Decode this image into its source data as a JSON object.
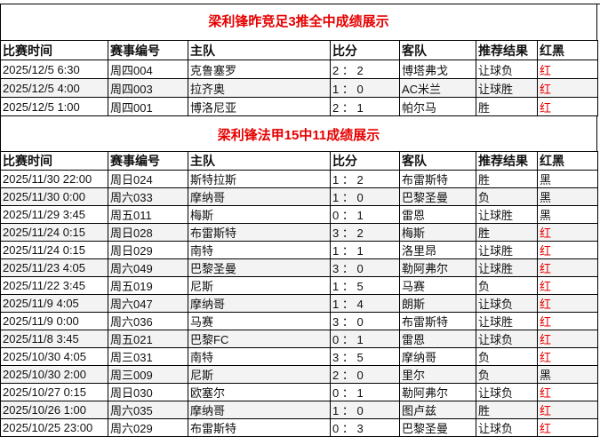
{
  "columns": [
    "比赛时间",
    "赛事编号",
    "主队",
    "比分",
    "客队",
    "推荐结果",
    "红黑"
  ],
  "section1": {
    "title": "梁利锋昨竞足3推全中成绩展示",
    "rows": [
      [
        "2025/12/5 6:30",
        "周四004",
        "克鲁塞罗",
        "2 ： 2",
        "博塔弗戈",
        "让球负",
        "红"
      ],
      [
        "2025/12/5 4:00",
        "周四003",
        "拉齐奥",
        "1 ： 0",
        "AC米兰",
        "让球胜",
        "红"
      ],
      [
        "2025/12/5 1:00",
        "周四001",
        "博洛尼亚",
        "2 ： 1",
        "帕尔马",
        "胜",
        "红"
      ]
    ]
  },
  "section2": {
    "title": "梁利锋法甲15中11成绩展示",
    "rows": [
      [
        "2025/11/30 22:00",
        "周日024",
        "斯特拉斯",
        "1 ： 2",
        "布雷斯特",
        "胜",
        "黑"
      ],
      [
        "2025/11/30 0:00",
        "周六033",
        "摩纳哥",
        "1 ： 0",
        "巴黎圣曼",
        "负",
        "黑"
      ],
      [
        "2025/11/29 3:45",
        "周五011",
        "梅斯",
        "0 ： 1",
        "雷恩",
        "让球胜",
        "黑"
      ],
      [
        "2025/11/24 0:15",
        "周日028",
        "布雷斯特",
        "3 ： 2",
        "梅斯",
        "胜",
        "红"
      ],
      [
        "2025/11/24 0:15",
        "周日029",
        "南特",
        "1 ： 1",
        "洛里昂",
        "让球胜",
        "红"
      ],
      [
        "2025/11/23 4:05",
        "周六049",
        "巴黎圣曼",
        "3 ： 0",
        "勒阿弗尔",
        "让球胜",
        "红"
      ],
      [
        "2025/11/22 3:45",
        "周五019",
        "尼斯",
        "1 ： 5",
        "马赛",
        "负",
        "红"
      ],
      [
        "2025/11/9 4:05",
        "周六047",
        "摩纳哥",
        "1 ： 4",
        "朗斯",
        "让球负",
        "红"
      ],
      [
        "2025/11/9 0:00",
        "周六036",
        "马赛",
        "3 ： 0",
        "布雷斯特",
        "让球胜",
        "红"
      ],
      [
        "2025/11/8 3:45",
        "周五021",
        "巴黎FC",
        "0 ： 1",
        "雷恩",
        "让球负",
        "红"
      ],
      [
        "2025/10/30 4:05",
        "周三031",
        "南特",
        "3 ： 5",
        "摩纳哥",
        "负",
        "红"
      ],
      [
        "2025/10/30 2:00",
        "周三009",
        "尼斯",
        "2 ： 0",
        "里尔",
        "负",
        "黑"
      ],
      [
        "2025/10/27 0:15",
        "周日030",
        "欧塞尔",
        "0 ： 1",
        "勒阿弗尔",
        "让球负",
        "红"
      ],
      [
        "2025/10/26 1:00",
        "周六035",
        "摩纳哥",
        "1 ： 0",
        "图卢兹",
        "胜",
        "红"
      ],
      [
        "2025/10/25 23:00",
        "周六029",
        "布雷斯特",
        "0 ： 3",
        "巴黎圣曼",
        "让球负",
        "红"
      ]
    ]
  },
  "colors": {
    "red": "#e60000",
    "black": "#111111"
  }
}
